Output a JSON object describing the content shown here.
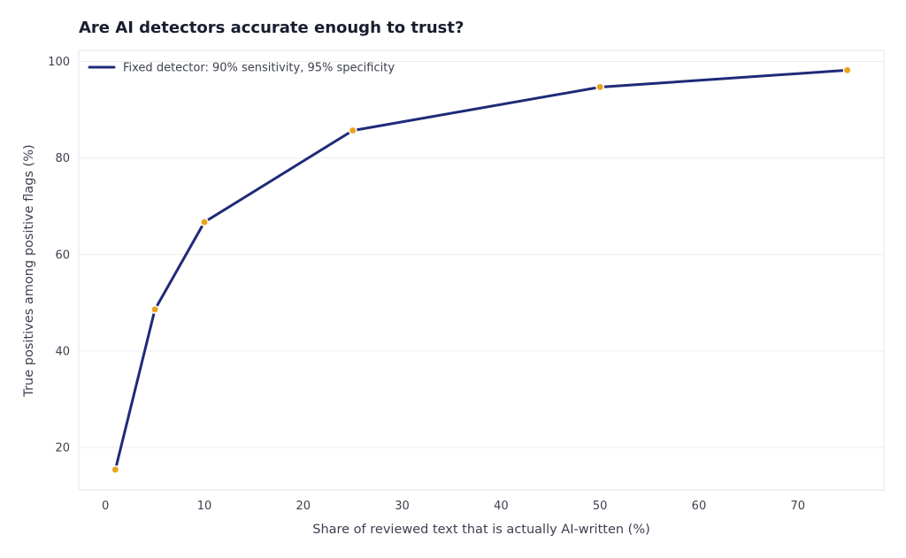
{
  "chart_data": {
    "type": "line",
    "title": "Are AI detectors accurate enough to trust?",
    "xlabel": "Share of reviewed text that is actually AI-written (%)",
    "ylabel": "True positives among positive flags (%)",
    "xlim": [
      -2.7,
      78.7
    ],
    "ylim": [
      11.2,
      102.3
    ],
    "xticks": [
      0,
      10,
      20,
      30,
      40,
      50,
      60,
      70
    ],
    "yticks": [
      20,
      40,
      60,
      80,
      100
    ],
    "grid": "horizontal",
    "legend_position": "top-left",
    "series": [
      {
        "name": "Fixed detector: 90% sensitivity, 95% specificity",
        "color": "#1f2a78",
        "marker_color": "#e8a31c",
        "x": [
          1,
          5,
          10,
          25,
          50,
          75
        ],
        "y": [
          15.4,
          48.6,
          66.7,
          85.7,
          94.7,
          98.2
        ]
      }
    ]
  }
}
